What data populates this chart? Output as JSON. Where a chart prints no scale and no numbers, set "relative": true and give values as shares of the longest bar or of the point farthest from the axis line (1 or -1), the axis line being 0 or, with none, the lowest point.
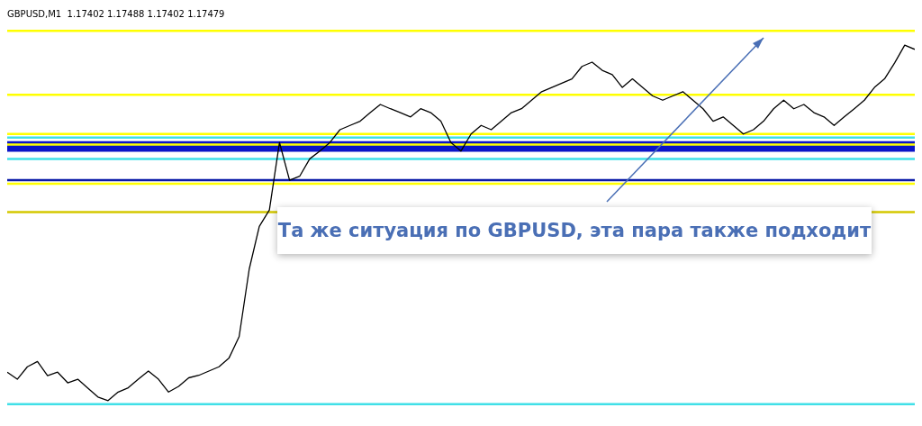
{
  "chart_data": {
    "type": "line",
    "title": "GBPUSD,M1  1.17402 1.17488 1.17402 1.17479",
    "relative": true,
    "tick_labels": false,
    "grid": false,
    "legend": false,
    "marker": "none",
    "line_style": "solid",
    "categories": [
      null,
      null,
      null,
      null,
      null,
      null,
      null,
      null,
      null,
      null,
      null,
      null,
      null,
      null,
      null,
      null,
      null,
      null,
      null,
      null,
      null,
      null,
      null,
      null,
      null,
      null,
      null,
      null,
      null,
      null,
      null,
      null,
      null,
      null,
      null,
      null,
      null,
      null,
      null,
      null,
      null,
      null,
      null,
      null,
      null,
      null,
      null,
      null,
      null,
      null,
      null,
      null,
      null,
      null,
      null,
      null,
      null,
      null,
      null,
      null,
      null,
      null,
      null,
      null,
      null,
      null,
      null,
      null,
      null,
      null,
      null,
      null,
      null,
      null,
      null,
      null,
      null,
      null,
      null,
      null,
      null,
      null,
      null,
      null,
      null,
      null,
      null,
      null,
      null,
      null,
      null
    ],
    "series": [
      {
        "color": "#000000",
        "values": [
          0.08,
          0.06,
          0.095,
          0.11,
          0.07,
          0.08,
          0.05,
          0.06,
          0.035,
          0.01,
          0,
          0.024,
          0.036,
          0.06,
          0.083,
          0.06,
          0.024,
          0.04,
          0.064,
          0.071,
          0.083,
          0.095,
          0.12,
          0.18,
          0.37,
          0.49,
          0.536,
          0.726,
          0.62,
          0.631,
          0.68,
          0.702,
          0.726,
          0.762,
          0.774,
          0.786,
          0.81,
          0.833,
          0.821,
          0.81,
          0.798,
          0.821,
          0.81,
          0.786,
          0.726,
          0.702,
          0.75,
          0.774,
          0.762,
          0.786,
          0.81,
          0.821,
          0.845,
          0.869,
          0.881,
          0.893,
          0.905,
          0.94,
          0.952,
          0.929,
          0.917,
          0.881,
          0.905,
          0.881,
          0.857,
          0.845,
          0.857,
          0.869,
          0.845,
          0.821,
          0.786,
          0.798,
          0.774,
          0.75,
          0.762,
          0.786,
          0.821,
          0.845,
          0.821,
          0.833,
          0.81,
          0.798,
          0.774,
          0.798,
          0.821,
          0.845,
          0.881,
          0.905,
          0.95,
          1.0,
          0.988
        ]
      }
    ],
    "ref_lines": [
      {
        "axis": "y",
        "value": 1.04,
        "color": "#ffff00"
      },
      {
        "axis": "y",
        "value": 0.86,
        "color": "#ffff00"
      },
      {
        "axis": "y",
        "value": 0.75,
        "color": "#ffff00"
      },
      {
        "axis": "y",
        "value": 0.72,
        "color": "#ffff00"
      },
      {
        "axis": "y",
        "value": 0.61,
        "color": "#ffff00"
      },
      {
        "axis": "y",
        "value": 0.53,
        "color": "#d4c800"
      },
      {
        "axis": "y",
        "value": 0.74,
        "color": "#40e0e8"
      },
      {
        "axis": "y",
        "value": 0.68,
        "color": "#40e0e8"
      },
      {
        "axis": "y",
        "value": 0.62,
        "color": "#0a1aa8"
      },
      {
        "axis": "y",
        "value": -0.01,
        "color": "#40e0e8"
      }
    ],
    "bands": [
      {
        "axis": "y",
        "from": 0.7,
        "to": 0.73,
        "color": "#0a14c8"
      }
    ],
    "annotations": [
      "Та же ситуация по GBPUSD, эта пара также подходит"
    ]
  }
}
